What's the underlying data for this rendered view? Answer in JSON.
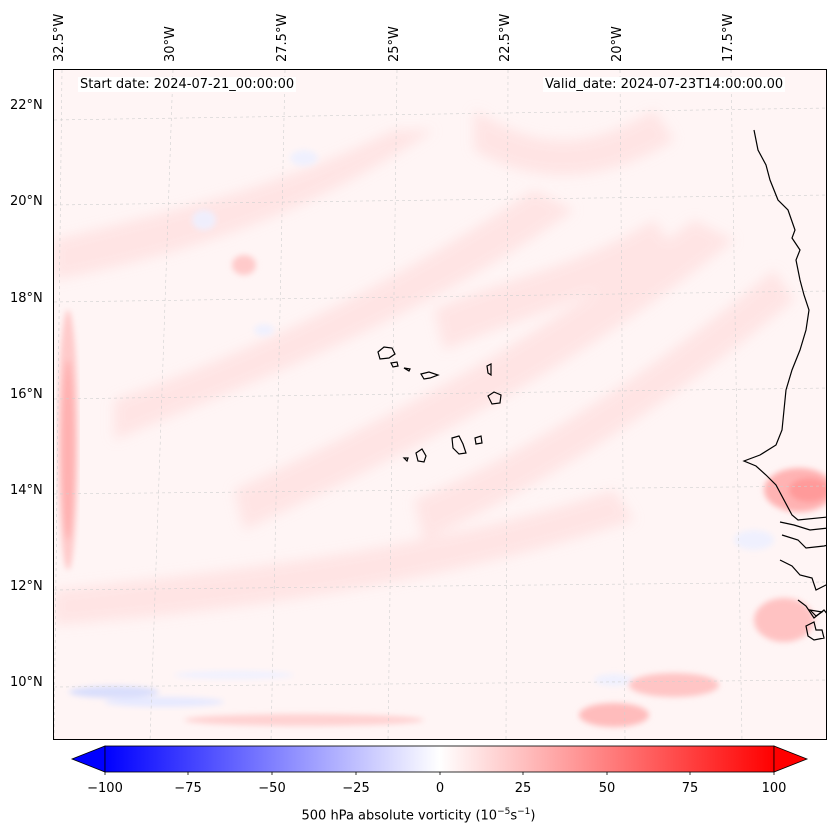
{
  "map": {
    "start_date": "Start date: 2024-07-21_00:00:00",
    "valid_date": "Valid_date: 2024-07-23T14:00:00.00",
    "lon_labels": [
      "32.5°W",
      "30°W",
      "27.5°W",
      "25°W",
      "22.5°W",
      "20°W",
      "17.5°W"
    ],
    "lat_labels": [
      "22°N",
      "20°N",
      "18°N",
      "16°N",
      "14°N",
      "12°N",
      "10°N"
    ]
  },
  "colorbar": {
    "label_main": "500 hPa absolute vorticity (10",
    "label_exp1": "−5",
    "label_mid": "s",
    "label_exp2": "−1",
    "label_end": ")",
    "ticks": [
      "−100",
      "−75",
      "−50",
      "−25",
      "0",
      "25",
      "50",
      "75",
      "100"
    ],
    "colors": {
      "min": "#0000ff",
      "mid": "#ffffff",
      "max": "#ff0000"
    }
  }
}
